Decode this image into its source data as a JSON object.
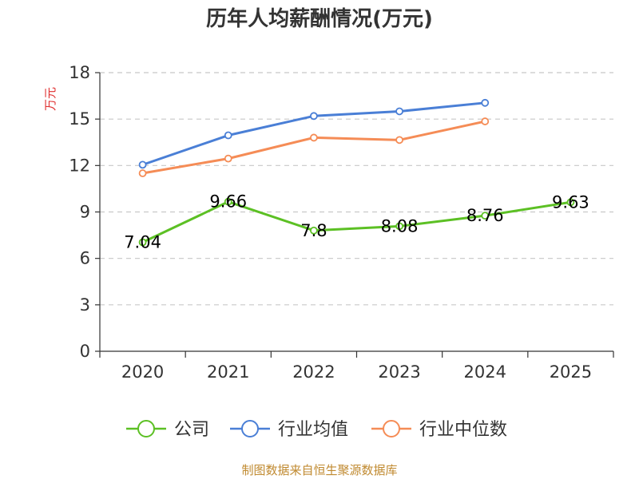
{
  "chart_data": {
    "type": "line",
    "title": "历年人均薪酬情况(万元)",
    "ylabel": "万元",
    "xlabel": "",
    "categories": [
      "2020",
      "2021",
      "2022",
      "2023",
      "2024",
      "2025"
    ],
    "ylim": [
      0,
      18
    ],
    "yticks": [
      0,
      3,
      6,
      9,
      12,
      15,
      18
    ],
    "grid": true,
    "legend_position": "bottom",
    "series": [
      {
        "name": "公司",
        "color": "#5cc024",
        "values": [
          7.04,
          9.66,
          7.8,
          8.08,
          8.76,
          9.63
        ],
        "labels": [
          "7.04",
          "9.66",
          "7.8",
          "8.08",
          "8.76",
          "9.63"
        ]
      },
      {
        "name": "行业均值",
        "color": "#4a7fd6",
        "values": [
          12.05,
          13.95,
          15.2,
          15.5,
          16.05,
          null
        ]
      },
      {
        "name": "行业中位数",
        "color": "#f58c56",
        "values": [
          11.5,
          12.45,
          13.8,
          13.65,
          14.85,
          null
        ]
      }
    ]
  },
  "source": "制图数据来自恒生聚源数据库"
}
